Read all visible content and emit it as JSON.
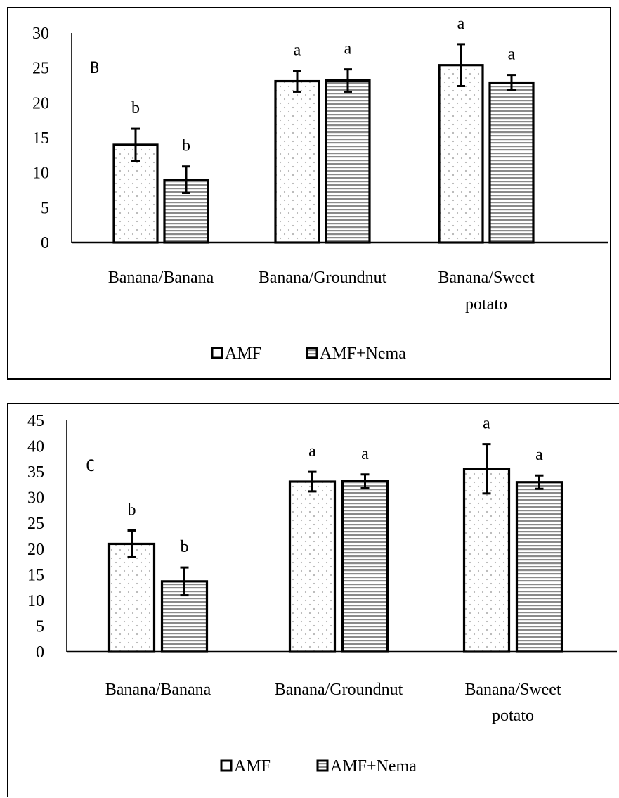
{
  "chart_data": [
    {
      "type": "bar",
      "panel_label": "B",
      "categories": [
        "Banana/Banana",
        "Banana/Groundnut",
        "Banana/Sweet potato"
      ],
      "series": [
        {
          "name": "AMF",
          "values": [
            14,
            23.1,
            25.4
          ],
          "errors": [
            2.3,
            1.5,
            3.0
          ],
          "letters": [
            "b",
            "a",
            "a"
          ]
        },
        {
          "name": "AMF+Nema",
          "values": [
            9,
            23.2,
            22.9
          ],
          "errors": [
            1.9,
            1.6,
            1.1
          ],
          "letters": [
            "b",
            "a",
            "a"
          ]
        }
      ],
      "ylim": [
        0,
        30
      ],
      "yticks": [
        0,
        5,
        10,
        15,
        20,
        25,
        30
      ],
      "legend_position": "bottom"
    },
    {
      "type": "bar",
      "panel_label": "C",
      "categories": [
        "Banana/Banana",
        "Banana/Groundnut",
        "Banana/Sweet potato"
      ],
      "series": [
        {
          "name": "AMF",
          "values": [
            21,
            33.1,
            35.6
          ],
          "errors": [
            2.6,
            1.9,
            4.8
          ],
          "letters": [
            "b",
            "a",
            "a"
          ]
        },
        {
          "name": "AMF+Nema",
          "values": [
            13.7,
            33.2,
            33.0
          ],
          "errors": [
            2.7,
            1.3,
            1.3
          ],
          "letters": [
            "b",
            "a",
            "a"
          ]
        }
      ],
      "ylim": [
        0,
        45
      ],
      "yticks": [
        0,
        5,
        10,
        15,
        20,
        25,
        30,
        35,
        40,
        45
      ],
      "legend_position": "bottom"
    }
  ],
  "colors": {
    "bar_outline": "#000000",
    "amf_dots": "#b5b5b5",
    "nema_stripes": "#8a8a8a"
  }
}
